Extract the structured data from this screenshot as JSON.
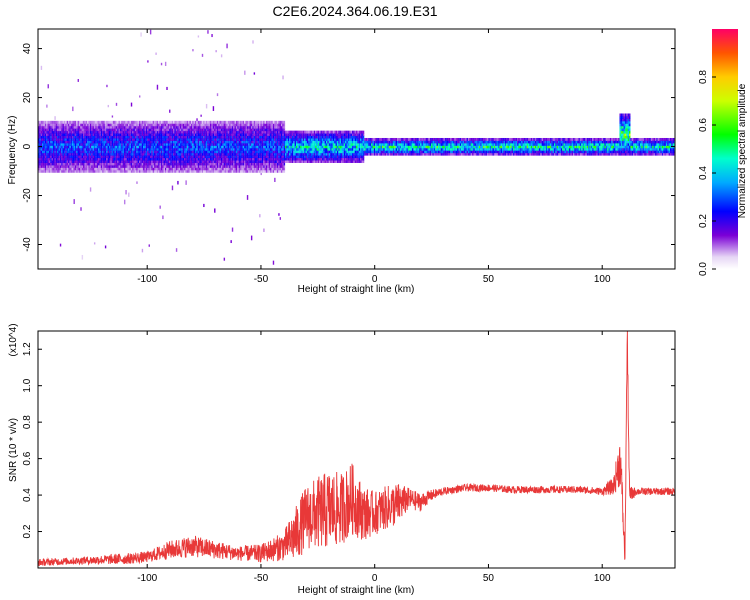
{
  "title": "C2E6.2024.364.06.19.E31",
  "chart_data": [
    {
      "type": "heatmap",
      "xlabel": "Height of straight line (km)",
      "ylabel": "Frequency (Hz)",
      "xlim": [
        -148,
        132
      ],
      "ylim": [
        -50,
        48
      ],
      "xticks": [
        -100,
        -50,
        0,
        50,
        100
      ],
      "xtick_labels": [
        "-100",
        "-50",
        "0",
        "50",
        "100"
      ],
      "yticks": [
        -40,
        -20,
        0,
        20,
        40
      ],
      "ytick_labels": [
        "-40",
        "-20",
        "0",
        "20",
        "40"
      ],
      "colorbar": {
        "label": "Normalized spectral amplitude",
        "range": [
          0,
          1
        ],
        "ticks": [
          0,
          0.2,
          0.4,
          0.6,
          0.8
        ],
        "tick_labels": [
          "0.0",
          "0.2",
          "0.4",
          "0.6",
          "0.8"
        ],
        "colormap": "rainbow"
      },
      "regions": [
        {
          "x": [
            -148,
            -40
          ],
          "freq_center": 0,
          "freq_halfwidth": 10,
          "amplitude": 0.3,
          "note": "noisy broadband"
        },
        {
          "x": [
            -40,
            -5
          ],
          "freq_center": 0,
          "freq_halfwidth": 6,
          "amplitude": 0.45
        },
        {
          "x": [
            -5,
            132
          ],
          "freq_center": 0,
          "freq_halfwidth": 3,
          "amplitude": 0.5
        },
        {
          "x": [
            107,
            112
          ],
          "freq_center": 5,
          "freq_halfwidth": 8,
          "amplitude": 0.55,
          "note": "transient at ~110 km"
        }
      ]
    },
    {
      "type": "line",
      "xlabel": "Height of straight line (km)",
      "ylabel": "SNR (10 * v/v)",
      "multiplier": "(x10^4)",
      "xlim": [
        -148,
        132
      ],
      "ylim": [
        0,
        1.3
      ],
      "xticks": [
        -100,
        -50,
        0,
        50,
        100
      ],
      "xtick_labels": [
        "-100",
        "-50",
        "0",
        "50",
        "100"
      ],
      "yticks": [
        0.2,
        0.4,
        0.6,
        0.8,
        1.0,
        1.2
      ],
      "ytick_labels": [
        "0.2",
        "0.4",
        "0.6",
        "0.8",
        "1.0",
        "1.2"
      ],
      "color": "#e83838",
      "series": [
        {
          "x": [
            -148,
            -130,
            -110,
            -100,
            -90,
            -80,
            -70,
            -60,
            -50,
            -40,
            -35,
            -30,
            -25,
            -20,
            -15,
            -10,
            -5,
            0,
            5,
            10,
            15,
            20,
            25,
            30,
            40,
            50,
            60,
            70,
            80,
            90,
            100,
            105,
            108,
            110,
            111,
            112,
            115,
            120,
            132
          ],
          "y": [
            0.03,
            0.04,
            0.05,
            0.06,
            0.1,
            0.12,
            0.1,
            0.08,
            0.08,
            0.12,
            0.18,
            0.28,
            0.3,
            0.32,
            0.32,
            0.38,
            0.3,
            0.3,
            0.33,
            0.35,
            0.38,
            0.36,
            0.4,
            0.42,
            0.44,
            0.44,
            0.43,
            0.43,
            0.43,
            0.43,
            0.42,
            0.45,
            0.6,
            0.05,
            1.28,
            0.4,
            0.42,
            0.42,
            0.42
          ],
          "amplitude": [
            0.02,
            0.02,
            0.03,
            0.03,
            0.05,
            0.06,
            0.05,
            0.04,
            0.05,
            0.08,
            0.15,
            0.18,
            0.2,
            0.22,
            0.2,
            0.2,
            0.15,
            0.12,
            0.12,
            0.12,
            0.06,
            0.05,
            0.03,
            0.02,
            0.02,
            0.02,
            0.02,
            0.02,
            0.02,
            0.02,
            0.02,
            0.05,
            0.15,
            0.05,
            0.1,
            0.05,
            0.02,
            0.02,
            0.02
          ]
        }
      ]
    }
  ]
}
